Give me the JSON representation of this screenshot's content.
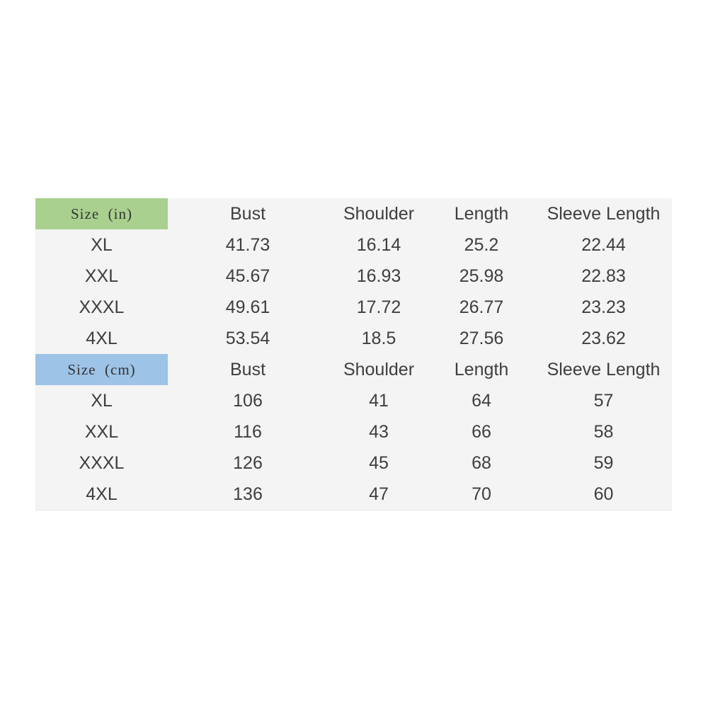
{
  "tables": [
    {
      "unit_label": "Size  (in)",
      "header_color": "#a9d08e",
      "columns": [
        "Bust",
        "Shoulder",
        "Length",
        "Sleeve Length"
      ],
      "rows": [
        {
          "size": "XL",
          "bust": "41.73",
          "shoulder": "16.14",
          "length": "25.2",
          "sleeve": "22.44"
        },
        {
          "size": "XXL",
          "bust": "45.67",
          "shoulder": "16.93",
          "length": "25.98",
          "sleeve": "22.83"
        },
        {
          "size": "XXXL",
          "bust": "49.61",
          "shoulder": "17.72",
          "length": "26.77",
          "sleeve": "23.23"
        },
        {
          "size": "4XL",
          "bust": "53.54",
          "shoulder": "18.5",
          "length": "27.56",
          "sleeve": "23.62"
        }
      ]
    },
    {
      "unit_label": "Size  (cm)",
      "header_color": "#9dc3e6",
      "columns": [
        "Bust",
        "Shoulder",
        "Length",
        "Sleeve Length"
      ],
      "rows": [
        {
          "size": "XL",
          "bust": "106",
          "shoulder": "41",
          "length": "64",
          "sleeve": "57"
        },
        {
          "size": "XXL",
          "bust": "116",
          "shoulder": "43",
          "length": "66",
          "sleeve": "58"
        },
        {
          "size": "XXXL",
          "bust": "126",
          "shoulder": "45",
          "length": "68",
          "sleeve": "59"
        },
        {
          "size": "4XL",
          "bust": "136",
          "shoulder": "47",
          "length": "70",
          "sleeve": "60"
        }
      ]
    }
  ]
}
